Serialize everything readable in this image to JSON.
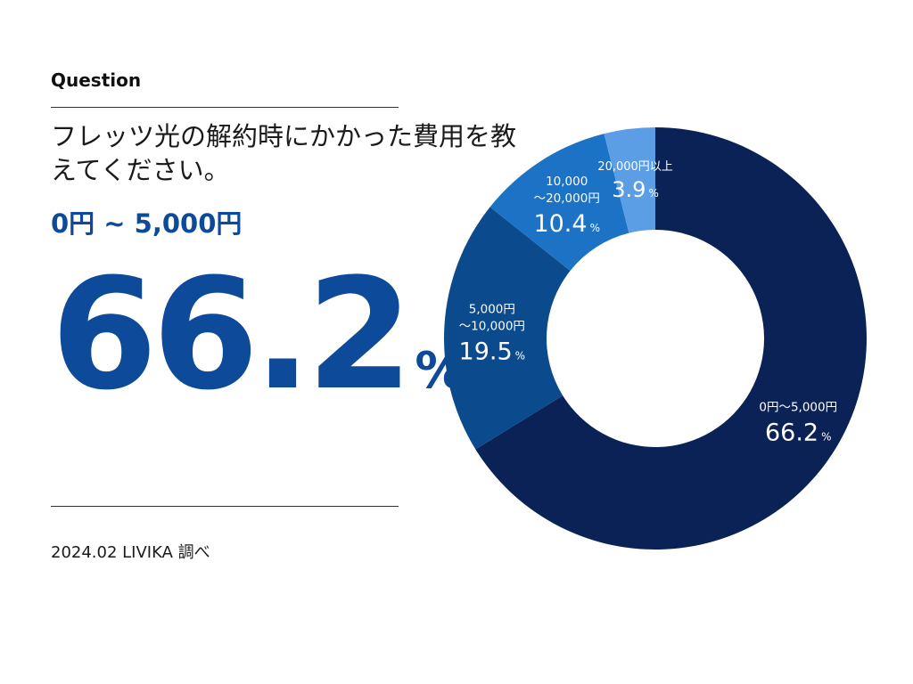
{
  "header": {
    "label": "Question",
    "question": "フレッツ光の解約時にかかった費用を教えてください。"
  },
  "highlight": {
    "range": "0円 ~ 5,000円",
    "value": "66.2",
    "unit": "%"
  },
  "footer": {
    "source": "2024.02 LIVIKA 調べ"
  },
  "chart_data": {
    "type": "pie",
    "variant": "donut",
    "title": "フレッツ光の解約時にかかった費用を教えてください。",
    "categories": [
      "0円～5,000円",
      "5,000円～10,000円",
      "10,000～20,000円",
      "20,000円以上"
    ],
    "values": [
      66.2,
      19.5,
      10.4,
      3.9
    ],
    "unit": "%",
    "colors": [
      "#0b2257",
      "#0c4a8e",
      "#1c72c4",
      "#5b9ee6"
    ],
    "labels": [
      {
        "lines": [
          "0円～5,000円"
        ],
        "value": "66.2",
        "unit": "%"
      },
      {
        "lines": [
          "5,000円",
          "～10,000円"
        ],
        "value": "19.5",
        "unit": "%"
      },
      {
        "lines": [
          "10,000",
          "～20,000円"
        ],
        "value": "10.4",
        "unit": "%"
      },
      {
        "lines": [
          "20,000円以上"
        ],
        "value": "3.9",
        "unit": "%"
      }
    ],
    "legend": "none"
  }
}
